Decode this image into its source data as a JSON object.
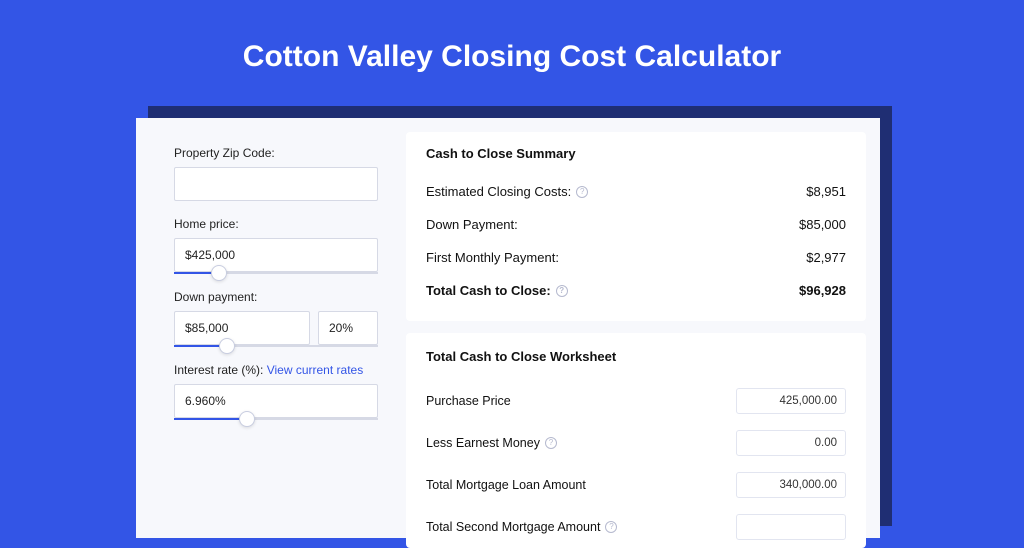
{
  "colors": {
    "page_bg": "#3355e6",
    "shadow_bg": "#1f2e73",
    "card_bg": "#f7f8fc",
    "panel_bg": "#ffffff",
    "border": "#d6d9e5",
    "slider_track": "#d6d9e5",
    "slider_fill": "#3355e6",
    "link": "#3355e6",
    "text": "#111111"
  },
  "page_title": "Cotton Valley Closing Cost Calculator",
  "left": {
    "zip": {
      "label": "Property Zip Code:",
      "value": ""
    },
    "home_price": {
      "label": "Home price:",
      "value": "$425,000",
      "slider_pct": 22
    },
    "down_payment": {
      "label": "Down payment:",
      "value": "$85,000",
      "pct_value": "20%",
      "slider_pct": 26
    },
    "interest": {
      "label": "Interest rate (%):",
      "link_text": "View current rates",
      "value": "6.960%",
      "slider_pct": 36
    }
  },
  "summary": {
    "title": "Cash to Close Summary",
    "rows": [
      {
        "label": "Estimated Closing Costs:",
        "has_info": true,
        "value": "$8,951",
        "bold": false
      },
      {
        "label": "Down Payment:",
        "has_info": false,
        "value": "$85,000",
        "bold": false
      },
      {
        "label": "First Monthly Payment:",
        "has_info": false,
        "value": "$2,977",
        "bold": false
      },
      {
        "label": "Total Cash to Close:",
        "has_info": true,
        "value": "$96,928",
        "bold": true
      }
    ]
  },
  "worksheet": {
    "title": "Total Cash to Close Worksheet",
    "rows": [
      {
        "label": "Purchase Price",
        "has_info": false,
        "value": "425,000.00"
      },
      {
        "label": "Less Earnest Money",
        "has_info": true,
        "value": "0.00"
      },
      {
        "label": "Total Mortgage Loan Amount",
        "has_info": false,
        "value": "340,000.00"
      },
      {
        "label": "Total Second Mortgage Amount",
        "has_info": true,
        "value": ""
      }
    ]
  }
}
